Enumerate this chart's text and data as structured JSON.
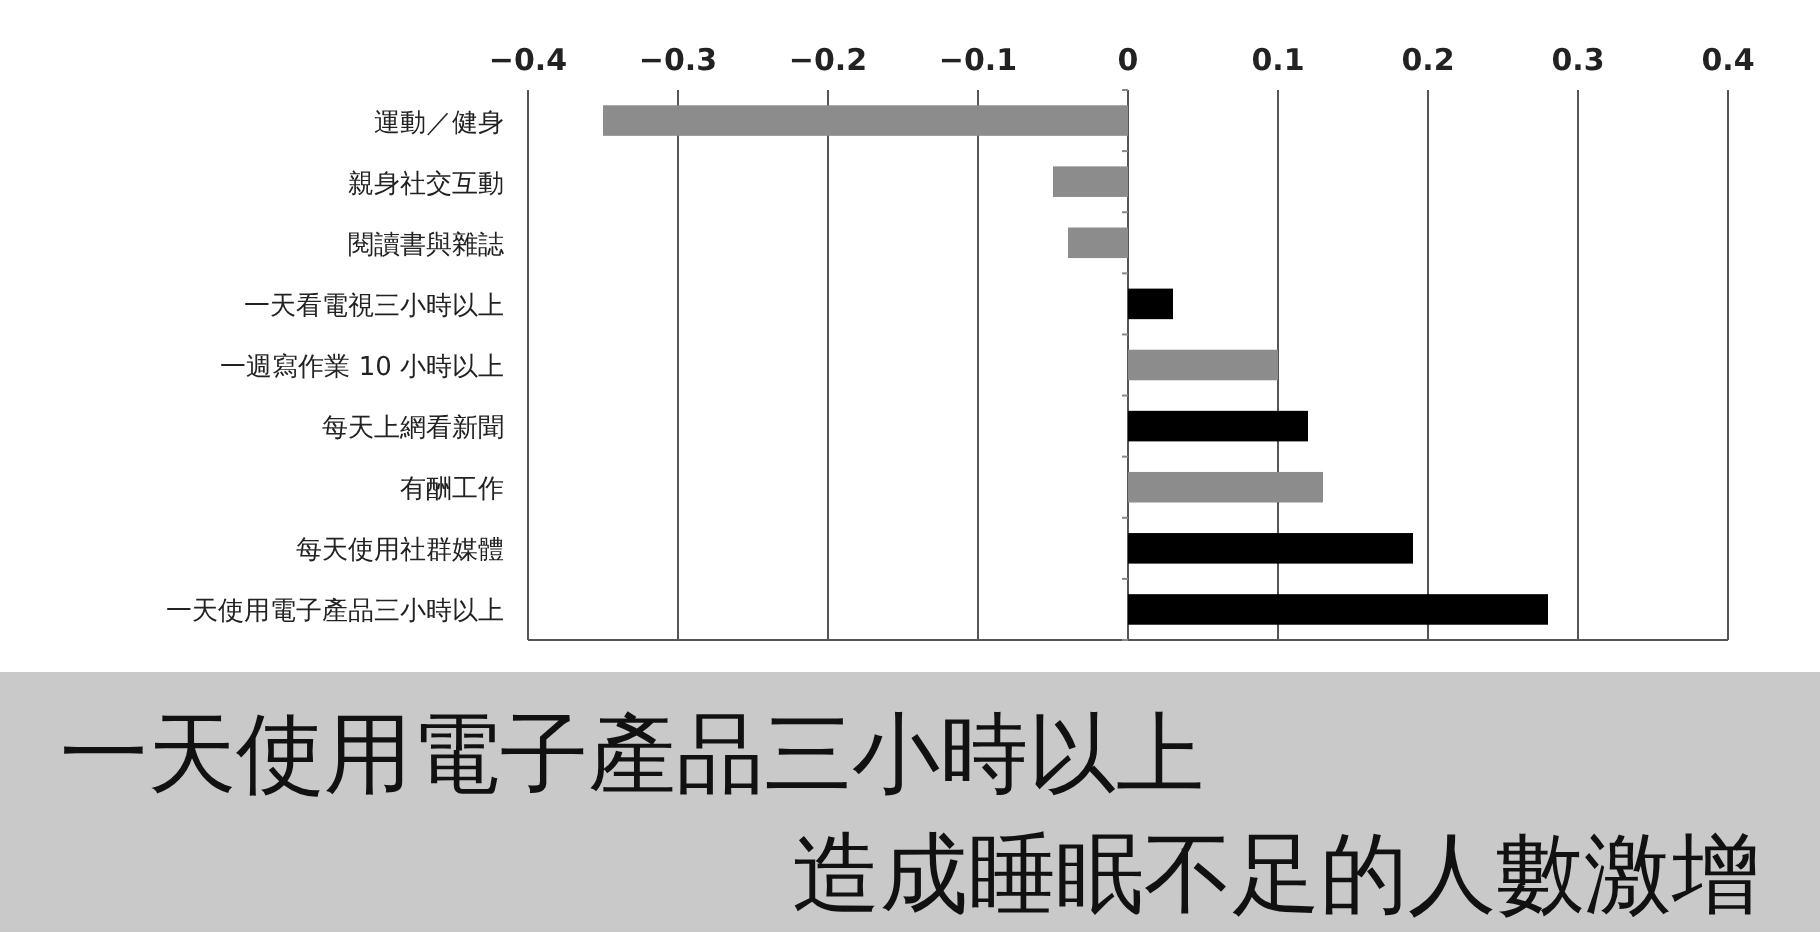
{
  "chart_data": {
    "type": "bar",
    "orientation": "horizontal",
    "title": "一天使用電子產品三小時以上",
    "subtitle": "造成睡眠不足的人數激增",
    "categories": [
      "運動／健身",
      "親身社交互動",
      "閱讀書與雜誌",
      "一天看電視三小時以上",
      "一週寫作業 10 小時以上",
      "每天上網看新聞",
      "有酬工作",
      "每天使用社群媒體",
      "一天使用電子產品三小時以上"
    ],
    "values": [
      -0.35,
      -0.05,
      -0.04,
      0.03,
      0.1,
      0.12,
      0.13,
      0.19,
      0.28
    ],
    "colors": [
      "#8c8c8c",
      "#8c8c8c",
      "#8c8c8c",
      "#000000",
      "#8c8c8c",
      "#000000",
      "#8c8c8c",
      "#000000",
      "#000000"
    ],
    "xlim": [
      -0.4,
      0.4
    ],
    "xticks": [
      {
        "value": -0.4,
        "label": "−0.4"
      },
      {
        "value": -0.3,
        "label": "−0.3"
      },
      {
        "value": -0.2,
        "label": "−0.2"
      },
      {
        "value": -0.1,
        "label": "−0.1"
      },
      0,
      0.1,
      0.2,
      0.3,
      0.4
    ],
    "grid": "x"
  }
}
